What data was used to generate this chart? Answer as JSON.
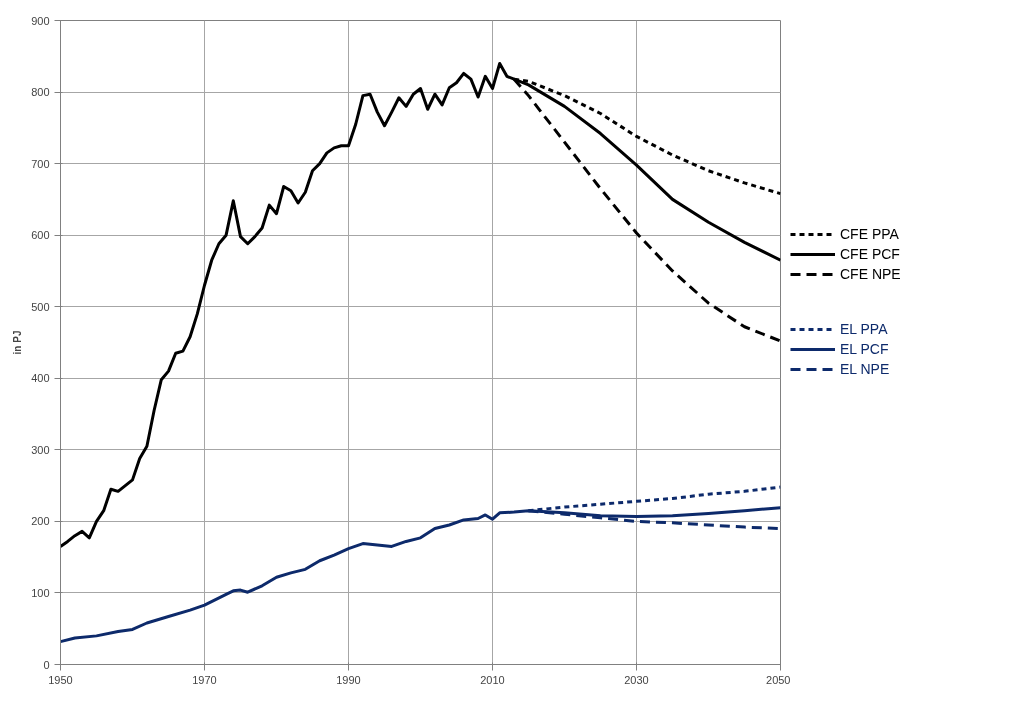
{
  "chart_data": {
    "type": "line",
    "ylabel": "in PJ",
    "xlim": [
      1950,
      2050
    ],
    "ylim": [
      0,
      900
    ],
    "xticks": [
      1950,
      1970,
      1990,
      2010,
      2030,
      2050
    ],
    "yticks": [
      0,
      100,
      200,
      300,
      400,
      500,
      600,
      700,
      800,
      900
    ],
    "grid": true,
    "legend": "right",
    "series": [
      {
        "name": "CFE PPA",
        "color": "#000000",
        "line_style": "dotted",
        "x": [
          2013,
          2015,
          2020,
          2025,
          2030,
          2035,
          2040,
          2045,
          2050
        ],
        "values": [
          818,
          815,
          795,
          770,
          738,
          712,
          690,
          673,
          658
        ]
      },
      {
        "name": "CFE PCF",
        "color": "#000000",
        "line_style": "solid",
        "x": [
          1950,
          1951,
          1952,
          1953,
          1954,
          1955,
          1956,
          1957,
          1958,
          1959,
          1960,
          1961,
          1962,
          1963,
          1964,
          1965,
          1966,
          1967,
          1968,
          1969,
          1970,
          1971,
          1972,
          1973,
          1974,
          1975,
          1976,
          1977,
          1978,
          1979,
          1980,
          1981,
          1982,
          1983,
          1984,
          1985,
          1986,
          1987,
          1988,
          1989,
          1990,
          1991,
          1992,
          1993,
          1994,
          1995,
          1996,
          1997,
          1998,
          1999,
          2000,
          2001,
          2002,
          2003,
          2004,
          2005,
          2006,
          2007,
          2008,
          2009,
          2010,
          2011,
          2012,
          2013,
          2015,
          2020,
          2025,
          2030,
          2035,
          2040,
          2045,
          2050
        ],
        "values": [
          165,
          172,
          180,
          186,
          177,
          200,
          215,
          245,
          242,
          250,
          258,
          288,
          305,
          355,
          398,
          410,
          435,
          438,
          458,
          490,
          530,
          565,
          588,
          600,
          648,
          598,
          588,
          598,
          610,
          642,
          630,
          668,
          662,
          645,
          660,
          690,
          700,
          715,
          722,
          725,
          725,
          755,
          795,
          797,
          772,
          753,
          772,
          792,
          780,
          797,
          805,
          776,
          797,
          782,
          806,
          813,
          826,
          818,
          793,
          822,
          805,
          840,
          822,
          818,
          810,
          780,
          742,
          698,
          650,
          618,
          590,
          565
        ]
      },
      {
        "name": "CFE NPE",
        "color": "#000000",
        "line_style": "dashed",
        "x": [
          2013,
          2015,
          2020,
          2025,
          2030,
          2035,
          2040,
          2045,
          2050
        ],
        "values": [
          818,
          795,
          730,
          665,
          603,
          550,
          505,
          472,
          452
        ]
      },
      {
        "name": "EL PPA",
        "color": "#0d2a6b",
        "line_style": "dotted",
        "x": [
          2015,
          2020,
          2025,
          2030,
          2035,
          2040,
          2045,
          2050
        ],
        "values": [
          215,
          220,
          224,
          228,
          232,
          238,
          242,
          248
        ]
      },
      {
        "name": "EL PCF",
        "color": "#0d2a6b",
        "line_style": "solid",
        "x": [
          1950,
          1952,
          1955,
          1958,
          1960,
          1962,
          1965,
          1968,
          1970,
          1973,
          1974,
          1975,
          1976,
          1978,
          1980,
          1982,
          1984,
          1986,
          1988,
          1990,
          1992,
          1994,
          1996,
          1998,
          2000,
          2002,
          2004,
          2006,
          2008,
          2009,
          2010,
          2011,
          2013,
          2015,
          2020,
          2025,
          2030,
          2035,
          2040,
          2045,
          2050
        ],
        "values": [
          32,
          37,
          40,
          46,
          49,
          58,
          67,
          76,
          83,
          98,
          103,
          104,
          101,
          110,
          122,
          128,
          133,
          145,
          153,
          162,
          169,
          167,
          165,
          172,
          177,
          190,
          195,
          202,
          204,
          209,
          203,
          212,
          213,
          215,
          212,
          208,
          207,
          208,
          211,
          215,
          219
        ]
      },
      {
        "name": "EL NPE",
        "color": "#0d2a6b",
        "line_style": "dashed",
        "x": [
          2015,
          2020,
          2025,
          2030,
          2035,
          2040,
          2045,
          2050
        ],
        "values": [
          215,
          210,
          205,
          200,
          198,
          195,
          192,
          190
        ]
      }
    ]
  }
}
